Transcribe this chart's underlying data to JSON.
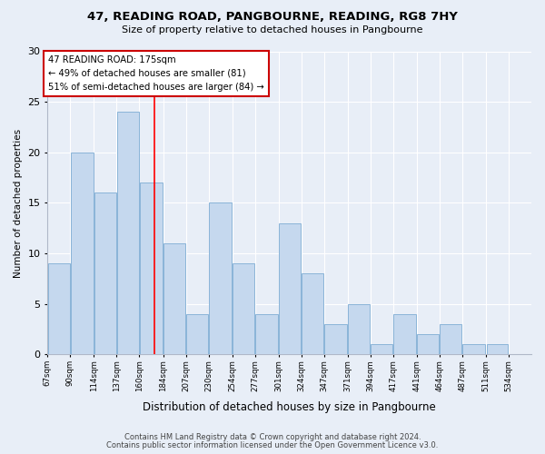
{
  "title": "47, READING ROAD, PANGBOURNE, READING, RG8 7HY",
  "subtitle": "Size of property relative to detached houses in Pangbourne",
  "bar_heights": [
    9,
    20,
    16,
    24,
    17,
    11,
    4,
    15,
    9,
    4,
    13,
    8,
    3,
    5,
    1,
    4,
    2,
    3,
    1,
    1
  ],
  "bin_edges": [
    67,
    90,
    114,
    137,
    160,
    184,
    207,
    230,
    254,
    277,
    301,
    324,
    347,
    371,
    394,
    417,
    441,
    464,
    487,
    511,
    534
  ],
  "x_labels": [
    "67sqm",
    "90sqm",
    "114sqm",
    "137sqm",
    "160sqm",
    "184sqm",
    "207sqm",
    "230sqm",
    "254sqm",
    "277sqm",
    "301sqm",
    "324sqm",
    "347sqm",
    "371sqm",
    "394sqm",
    "417sqm",
    "441sqm",
    "464sqm",
    "487sqm",
    "511sqm",
    "534sqm"
  ],
  "bar_color": "#c5d8ee",
  "bar_edgecolor": "#8ab4d8",
  "red_line_x": 175,
  "ylim": [
    0,
    30
  ],
  "yticks": [
    0,
    5,
    10,
    15,
    20,
    25,
    30
  ],
  "ylabel": "Number of detached properties",
  "xlabel": "Distribution of detached houses by size in Pangbourne",
  "annotation_title": "47 READING ROAD: 175sqm",
  "annotation_line1": "← 49% of detached houses are smaller (81)",
  "annotation_line2": "51% of semi-detached houses are larger (84) →",
  "annotation_box_facecolor": "#ffffff",
  "annotation_box_edgecolor": "#cc0000",
  "footer_line1": "Contains HM Land Registry data © Crown copyright and database right 2024.",
  "footer_line2": "Contains public sector information licensed under the Open Government Licence v3.0.",
  "background_color": "#e8eef7",
  "grid_color": "#ffffff",
  "spine_color": "#b0b8c8"
}
